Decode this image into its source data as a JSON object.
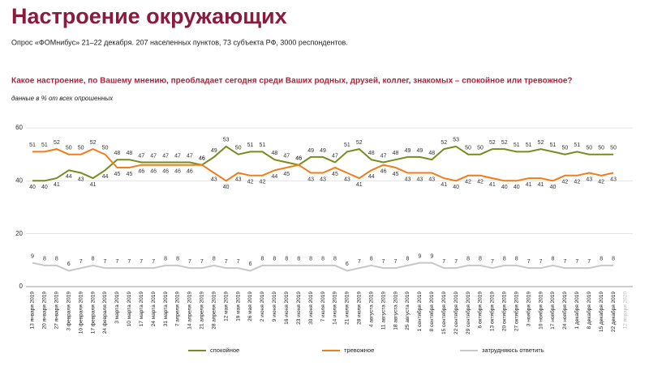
{
  "chart_data": {
    "type": "line",
    "title": "Настроение окружающих",
    "subtitle": "Опрос «ФОМнибус» 21–22 декабря. 207 населенных пунктов, 73 субъекта РФ, 3000 респондентов.",
    "question": "Какое настроение, по Вашему мнению, преобладает сегодня среди Ваших родных, друзей, коллег, знакомых – спокойное или тревожное?",
    "note": "данные в % от всех опрошенных",
    "categories": [
      "13 января 2019",
      "20 января 2019",
      "27 января 2019",
      "3 февраля 2019",
      "10 февраля 2019",
      "17 февраля 2019",
      "24 февраля 2019",
      "3 марта 2019",
      "10 марта 2019",
      "17 марта 2019",
      "24 марта 2019",
      "31 марта 2019",
      "7 апреля 2019",
      "14 апреля 2019",
      "21 апреля 2019",
      "28 апреля 2019",
      "12 мая 2019",
      "19 мая 2019",
      "26 мая 2019",
      "2 июня 2019",
      "9 июня 2019",
      "16 июня 2019",
      "23 июня 2019",
      "30 июня 2019",
      "7 июля 2019",
      "14 июля 2019",
      "21 июля 2019",
      "28 июля 2019",
      "4 августа 2019",
      "11 августа 2019",
      "18 августа 2019",
      "25 августа 2019",
      "1 сентября 2019",
      "8 сентября 2019",
      "15 сентября 2019",
      "22 сентября 2019",
      "29 сентября 2019",
      "6 октября 2019",
      "13 октября 2019",
      "20 октября 2019",
      "27 октября 2019",
      "3 ноября 2019",
      "10 ноября 2019",
      "17 ноября 2019",
      "24 ноября 2019",
      "1 декабря 2019",
      "8 декабря 2019",
      "15 декабря 2019",
      "22 декабря 2019",
      "12 января 2020"
    ],
    "series": [
      {
        "name": "спокойное",
        "color": "#7a8a1e",
        "values": [
          40,
          40,
          41,
          44,
          43,
          41,
          44,
          48,
          48,
          47,
          47,
          47,
          47,
          47,
          46,
          49,
          53,
          50,
          51,
          51,
          48,
          47,
          46,
          49,
          49,
          47,
          51,
          52,
          48,
          47,
          48,
          49,
          49,
          48,
          52,
          53,
          50,
          50,
          52,
          52,
          51,
          51,
          52,
          51,
          50,
          51,
          50,
          50,
          50,
          null
        ]
      },
      {
        "name": "тревожное",
        "color": "#f07d1a",
        "values": [
          51,
          51,
          52,
          50,
          50,
          52,
          50,
          45,
          45,
          46,
          46,
          46,
          46,
          46,
          46,
          43,
          40,
          43,
          42,
          42,
          44,
          45,
          46,
          43,
          43,
          45,
          43,
          41,
          44,
          46,
          45,
          43,
          43,
          43,
          41,
          40,
          42,
          42,
          41,
          40,
          40,
          41,
          41,
          40,
          42,
          42,
          43,
          42,
          43,
          null
        ]
      },
      {
        "name": "затрудняюсь ответить",
        "color": "#c8c8c8",
        "values": [
          9,
          8,
          8,
          6,
          7,
          8,
          7,
          7,
          7,
          7,
          7,
          8,
          8,
          7,
          7,
          8,
          7,
          7,
          6,
          8,
          8,
          8,
          8,
          8,
          8,
          8,
          6,
          7,
          8,
          7,
          7,
          8,
          9,
          9,
          7,
          7,
          8,
          8,
          7,
          8,
          8,
          7,
          7,
          8,
          7,
          7,
          7,
          8,
          8,
          null
        ]
      }
    ],
    "ylim": [
      0,
      60
    ],
    "yticks": [
      0,
      20,
      40,
      60
    ],
    "grid": true
  }
}
